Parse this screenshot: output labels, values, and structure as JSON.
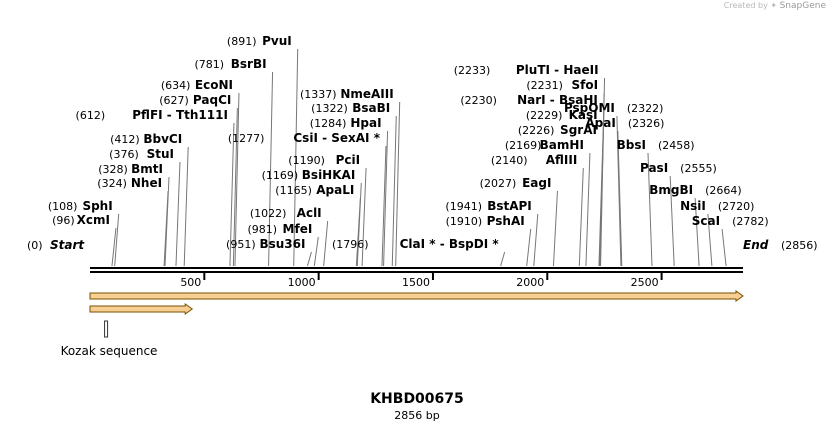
{
  "credit": {
    "prefix": "Created by",
    "brand": "SnapGene"
  },
  "map": {
    "name": "KHBD00675",
    "length_label": "2856 bp",
    "length_bp": 2856,
    "start_label": "Start",
    "start_pos": "(0)",
    "end_label": "End",
    "end_pos": "(2856)",
    "ticks": [
      {
        "bp": 500,
        "label": "500"
      },
      {
        "bp": 1000,
        "label": "1000"
      },
      {
        "bp": 1500,
        "label": "1500"
      },
      {
        "bp": 2000,
        "label": "2000"
      },
      {
        "bp": 2500,
        "label": "2500"
      }
    ],
    "features": [
      {
        "name": "main-orf",
        "from_bp": 0,
        "to_bp": 2856,
        "color": "#f2a83a"
      },
      {
        "name": "short-orf",
        "from_bp": 0,
        "to_bp": 447,
        "color": "#f2a83a"
      }
    ],
    "kozak": {
      "label": "Kozak sequence",
      "bp": 90
    },
    "sites": [
      {
        "bp": 96,
        "pos": "(96)",
        "name": "XcmI"
      },
      {
        "bp": 108,
        "pos": "(108)",
        "name": "SphI"
      },
      {
        "bp": 324,
        "pos": "(324)",
        "name": "NheI"
      },
      {
        "bp": 328,
        "pos": "(328)",
        "name": "BmtI"
      },
      {
        "bp": 376,
        "pos": "(376)",
        "name": "StuI"
      },
      {
        "bp": 412,
        "pos": "(412)",
        "name": "BbvCI"
      },
      {
        "bp": 612,
        "pos": "(612)",
        "name": "PflFI  - Tth111I"
      },
      {
        "bp": 627,
        "pos": "(627)",
        "name": "PaqCI"
      },
      {
        "bp": 634,
        "pos": "(634)",
        "name": "EcoNI"
      },
      {
        "bp": 781,
        "pos": "(781)",
        "name": "BsrBI"
      },
      {
        "bp": 891,
        "pos": "(891)",
        "name": "PvuI"
      },
      {
        "bp": 951,
        "pos": "(951)",
        "name": "Bsu36I"
      },
      {
        "bp": 981,
        "pos": "(981)",
        "name": "MfeI"
      },
      {
        "bp": 1022,
        "pos": "(1022)",
        "name": "AclI"
      },
      {
        "bp": 1165,
        "pos": "(1165)",
        "name": "ApaLI"
      },
      {
        "bp": 1169,
        "pos": "(1169)",
        "name": "BsiHKAI"
      },
      {
        "bp": 1190,
        "pos": "(1190)",
        "name": "PciI"
      },
      {
        "bp": 1277,
        "pos": "(1277)",
        "name": "CsiI  - SexAI *"
      },
      {
        "bp": 1284,
        "pos": "(1284)",
        "name": "HpaI"
      },
      {
        "bp": 1322,
        "pos": "(1322)",
        "name": "BsaBI"
      },
      {
        "bp": 1337,
        "pos": "(1337)",
        "name": "NmeAIII"
      },
      {
        "bp": 1796,
        "pos": "(1796)",
        "name": "ClaI *  - BspDI *"
      },
      {
        "bp": 1910,
        "pos": "(1910)",
        "name": "PshAI"
      },
      {
        "bp": 1941,
        "pos": "(1941)",
        "name": "BstAPI"
      },
      {
        "bp": 2027,
        "pos": "(2027)",
        "name": "EagI"
      },
      {
        "bp": 2140,
        "pos": "(2140)",
        "name": "AflIII"
      },
      {
        "bp": 2169,
        "pos": "(2169)",
        "name": "BamHI"
      },
      {
        "bp": 2226,
        "pos": "(2226)",
        "name": "SgrAI"
      },
      {
        "bp": 2229,
        "pos": "(2229)",
        "name": "KasI"
      },
      {
        "bp": 2230,
        "pos": "(2230)",
        "name": "NarI  - BsaHI"
      },
      {
        "bp": 2231,
        "pos": "(2231)",
        "name": "SfoI"
      },
      {
        "bp": 2233,
        "pos": "(2233)",
        "name": "PluTI  - HaeII"
      },
      {
        "bp": 2322,
        "pos": "(2322)",
        "name": "PspOMI"
      },
      {
        "bp": 2326,
        "pos": "(2326)",
        "name": "ApaI"
      },
      {
        "bp": 2458,
        "pos": "(2458)",
        "name": "BbsI"
      },
      {
        "bp": 2555,
        "pos": "(2555)",
        "name": "PasI"
      },
      {
        "bp": 2664,
        "pos": "(2664)",
        "name": "BmgBI"
      },
      {
        "bp": 2720,
        "pos": "(2720)",
        "name": "NsiI"
      },
      {
        "bp": 2782,
        "pos": "(2782)",
        "name": "ScaI"
      }
    ]
  }
}
